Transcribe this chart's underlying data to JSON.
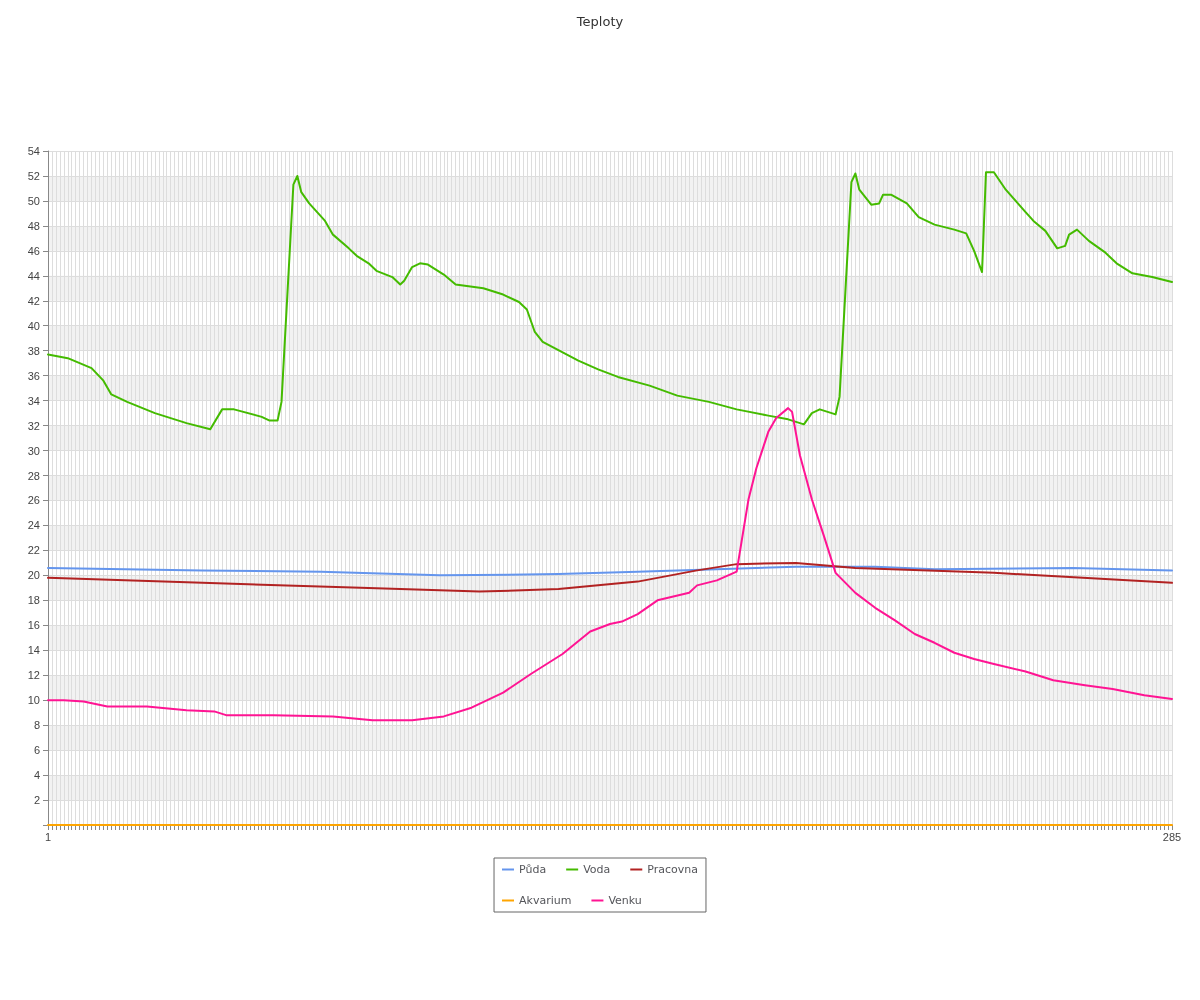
{
  "chart_data": {
    "type": "line",
    "title": "Teploty",
    "xlim": [
      1,
      285
    ],
    "xticks": [
      1,
      {
        "value": 2,
        "label": null
      },
      {
        "value": 3,
        "label": null
      },
      {
        "value": 4,
        "label": null
      },
      {
        "value": 5,
        "label": null
      },
      {
        "value": 6,
        "label": null
      },
      {
        "value": 7,
        "label": null
      },
      {
        "value": 8,
        "label": null
      },
      {
        "value": 9,
        "label": null
      },
      {
        "value": 10,
        "label": null
      },
      {
        "value": 11,
        "label": null
      },
      {
        "value": 12,
        "label": null
      },
      {
        "value": 13,
        "label": null
      },
      {
        "value": 14,
        "label": null
      },
      {
        "value": 15,
        "label": null
      },
      {
        "value": 16,
        "label": null
      },
      {
        "value": 17,
        "label": null
      },
      {
        "value": 18,
        "label": null
      },
      {
        "value": 19,
        "label": null
      },
      {
        "value": 20,
        "label": null
      },
      {
        "value": 21,
        "label": null
      },
      {
        "value": 22,
        "label": null
      },
      {
        "value": 23,
        "label": null
      },
      {
        "value": 24,
        "label": null
      },
      {
        "value": 25,
        "label": null
      },
      {
        "value": 26,
        "label": null
      },
      {
        "value": 27,
        "label": null
      },
      {
        "value": 28,
        "label": null
      },
      {
        "value": 29,
        "label": null
      },
      {
        "value": 30,
        "label": null
      },
      {
        "value": 31,
        "label": null
      },
      {
        "value": 32,
        "label": null
      },
      {
        "value": 33,
        "label": null
      },
      {
        "value": 34,
        "label": null
      },
      {
        "value": 35,
        "label": null
      },
      {
        "value": 36,
        "label": null
      },
      {
        "value": 37,
        "label": null
      },
      {
        "value": 38,
        "label": null
      },
      {
        "value": 39,
        "label": null
      },
      {
        "value": 40,
        "label": null
      },
      {
        "value": 41,
        "label": null
      },
      {
        "value": 42,
        "label": null
      },
      {
        "value": 43,
        "label": null
      },
      {
        "value": 44,
        "label": null
      },
      {
        "value": 45,
        "label": null
      },
      {
        "value": 46,
        "label": null
      },
      {
        "value": 47,
        "label": null
      },
      {
        "value": 48,
        "label": null
      },
      {
        "value": 49,
        "label": null
      },
      {
        "value": 50,
        "label": null
      },
      {
        "value": 51,
        "label": null
      },
      {
        "value": 52,
        "label": null
      },
      {
        "value": 53,
        "label": null
      },
      {
        "value": 54,
        "label": null
      },
      {
        "value": 55,
        "label": null
      },
      {
        "value": 56,
        "label": null
      },
      {
        "value": 57,
        "label": null
      },
      {
        "value": 58,
        "label": null
      },
      {
        "value": 59,
        "label": null
      },
      {
        "value": 60,
        "label": null
      },
      {
        "value": 61,
        "label": null
      },
      {
        "value": 62,
        "label": null
      },
      {
        "value": 63,
        "label": null
      },
      {
        "value": 64,
        "label": null
      },
      {
        "value": 65,
        "label": null
      },
      {
        "value": 66,
        "label": null
      },
      {
        "value": 67,
        "label": null
      },
      {
        "value": 68,
        "label": null
      },
      {
        "value": 69,
        "label": null
      },
      {
        "value": 70,
        "label": null
      },
      {
        "value": 71,
        "label": null
      },
      {
        "value": 72,
        "label": null
      },
      {
        "value": 73,
        "label": null
      },
      {
        "value": 74,
        "label": null
      },
      {
        "value": 75,
        "label": null
      },
      {
        "value": 76,
        "label": null
      },
      {
        "value": 77,
        "label": null
      },
      {
        "value": 78,
        "label": null
      },
      {
        "value": 79,
        "label": null
      },
      {
        "value": 80,
        "label": null
      },
      {
        "value": 81,
        "label": null
      },
      {
        "value": 82,
        "label": null
      },
      {
        "value": 83,
        "label": null
      },
      {
        "value": 84,
        "label": null
      },
      {
        "value": 85,
        "label": null
      },
      {
        "value": 86,
        "label": null
      },
      {
        "value": 87,
        "label": null
      },
      {
        "value": 88,
        "label": null
      },
      {
        "value": 89,
        "label": null
      },
      {
        "value": 90,
        "label": null
      },
      {
        "value": 91,
        "label": null
      },
      {
        "value": 92,
        "label": null
      },
      {
        "value": 93,
        "label": null
      },
      {
        "value": 94,
        "label": null
      },
      {
        "value": 95,
        "label": null
      },
      {
        "value": 96,
        "label": null
      },
      {
        "value": 97,
        "label": null
      },
      {
        "value": 98,
        "label": null
      },
      {
        "value": 99,
        "label": null
      },
      {
        "value": 100,
        "label": null
      },
      {
        "value": 101,
        "label": null
      },
      {
        "value": 102,
        "label": null
      },
      {
        "value": 103,
        "label": null
      },
      {
        "value": 104,
        "label": null
      },
      {
        "value": 105,
        "label": null
      },
      {
        "value": 106,
        "label": null
      },
      {
        "value": 107,
        "label": null
      },
      {
        "value": 108,
        "label": null
      },
      {
        "value": 109,
        "label": null
      },
      {
        "value": 110,
        "label": null
      },
      {
        "value": 111,
        "label": null
      },
      {
        "value": 112,
        "label": null
      },
      {
        "value": 113,
        "label": null
      },
      {
        "value": 114,
        "label": null
      },
      {
        "value": 115,
        "label": null
      },
      {
        "value": 116,
        "label": null
      },
      {
        "value": 117,
        "label": null
      },
      {
        "value": 118,
        "label": null
      },
      {
        "value": 119,
        "label": null
      },
      {
        "value": 120,
        "label": null
      },
      {
        "value": 121,
        "label": null
      },
      {
        "value": 122,
        "label": null
      },
      {
        "value": 123,
        "label": null
      },
      {
        "value": 124,
        "label": null
      },
      {
        "value": 125,
        "label": null
      },
      {
        "value": 126,
        "label": null
      },
      {
        "value": 127,
        "label": null
      },
      {
        "value": 128,
        "label": null
      },
      {
        "value": 129,
        "label": null
      },
      {
        "value": 130,
        "label": null
      },
      {
        "value": 131,
        "label": null
      },
      {
        "value": 132,
        "label": null
      },
      {
        "value": 133,
        "label": null
      },
      {
        "value": 134,
        "label": null
      },
      {
        "value": 135,
        "label": null
      },
      {
        "value": 136,
        "label": null
      },
      {
        "value": 137,
        "label": null
      },
      {
        "value": 138,
        "label": null
      },
      {
        "value": 139,
        "label": null
      },
      {
        "value": 140,
        "label": null
      },
      {
        "value": 141,
        "label": null
      },
      {
        "value": 142,
        "label": null
      },
      {
        "value": 143,
        "label": null
      },
      {
        "value": 144,
        "label": null
      },
      {
        "value": 145,
        "label": null
      },
      {
        "value": 146,
        "label": null
      },
      {
        "value": 147,
        "label": null
      },
      {
        "value": 148,
        "label": null
      },
      {
        "value": 149,
        "label": null
      },
      {
        "value": 150,
        "label": null
      },
      {
        "value": 151,
        "label": null
      },
      {
        "value": 152,
        "label": null
      },
      {
        "value": 153,
        "label": null
      },
      {
        "value": 154,
        "label": null
      },
      {
        "value": 155,
        "label": null
      },
      {
        "value": 156,
        "label": null
      },
      {
        "value": 157,
        "label": null
      },
      {
        "value": 158,
        "label": null
      },
      {
        "value": 159,
        "label": null
      },
      {
        "value": 160,
        "label": null
      },
      {
        "value": 161,
        "label": null
      },
      {
        "value": 162,
        "label": null
      },
      {
        "value": 163,
        "label": null
      },
      {
        "value": 164,
        "label": null
      },
      {
        "value": 165,
        "label": null
      },
      {
        "value": 166,
        "label": null
      },
      {
        "value": 167,
        "label": null
      },
      {
        "value": 168,
        "label": null
      },
      {
        "value": 169,
        "label": null
      },
      {
        "value": 170,
        "label": null
      },
      {
        "value": 171,
        "label": null
      },
      {
        "value": 172,
        "label": null
      },
      {
        "value": 173,
        "label": null
      },
      {
        "value": 174,
        "label": null
      },
      {
        "value": 175,
        "label": null
      },
      {
        "value": 176,
        "label": null
      },
      {
        "value": 177,
        "label": null
      },
      {
        "value": 178,
        "label": null
      },
      {
        "value": 179,
        "label": null
      },
      {
        "value": 180,
        "label": null
      },
      {
        "value": 181,
        "label": null
      },
      {
        "value": 182,
        "label": null
      },
      {
        "value": 183,
        "label": null
      },
      {
        "value": 184,
        "label": null
      },
      {
        "value": 185,
        "label": null
      },
      {
        "value": 186,
        "label": null
      },
      {
        "value": 187,
        "label": null
      },
      {
        "value": 188,
        "label": null
      },
      {
        "value": 189,
        "label": null
      },
      {
        "value": 190,
        "label": null
      },
      {
        "value": 191,
        "label": null
      },
      {
        "value": 192,
        "label": null
      },
      {
        "value": 193,
        "label": null
      },
      {
        "value": 194,
        "label": null
      },
      {
        "value": 195,
        "label": null
      },
      {
        "value": 196,
        "label": null
      },
      {
        "value": 197,
        "label": null
      },
      {
        "value": 198,
        "label": null
      },
      {
        "value": 199,
        "label": null
      },
      {
        "value": 200,
        "label": null
      },
      {
        "value": 201,
        "label": null
      },
      {
        "value": 202,
        "label": null
      },
      {
        "value": 203,
        "label": null
      },
      {
        "value": 204,
        "label": null
      },
      {
        "value": 205,
        "label": null
      },
      {
        "value": 206,
        "label": null
      },
      {
        "value": 207,
        "label": null
      },
      {
        "value": 208,
        "label": null
      },
      {
        "value": 209,
        "label": null
      },
      {
        "value": 210,
        "label": null
      },
      {
        "value": 211,
        "label": null
      },
      {
        "value": 212,
        "label": null
      },
      {
        "value": 213,
        "label": null
      },
      {
        "value": 214,
        "label": null
      },
      {
        "value": 215,
        "label": null
      },
      {
        "value": 216,
        "label": null
      },
      {
        "value": 217,
        "label": null
      },
      {
        "value": 218,
        "label": null
      },
      {
        "value": 219,
        "label": null
      },
      {
        "value": 220,
        "label": null
      },
      {
        "value": 221,
        "label": null
      },
      {
        "value": 222,
        "label": null
      },
      {
        "value": 223,
        "label": null
      },
      {
        "value": 224,
        "label": null
      },
      {
        "value": 225,
        "label": null
      },
      {
        "value": 226,
        "label": null
      },
      {
        "value": 227,
        "label": null
      },
      {
        "value": 228,
        "label": null
      },
      {
        "value": 229,
        "label": null
      },
      {
        "value": 230,
        "label": null
      },
      {
        "value": 231,
        "label": null
      },
      {
        "value": 232,
        "label": null
      },
      {
        "value": 233,
        "label": null
      },
      {
        "value": 234,
        "label": null
      },
      {
        "value": 235,
        "label": null
      },
      {
        "value": 236,
        "label": null
      },
      {
        "value": 237,
        "label": null
      },
      {
        "value": 238,
        "label": null
      },
      {
        "value": 239,
        "label": null
      },
      {
        "value": 240,
        "label": null
      },
      {
        "value": 241,
        "label": null
      },
      {
        "value": 242,
        "label": null
      },
      {
        "value": 243,
        "label": null
      },
      {
        "value": 244,
        "label": null
      },
      {
        "value": 245,
        "label": null
      },
      {
        "value": 246,
        "label": null
      },
      {
        "value": 247,
        "label": null
      },
      {
        "value": 248,
        "label": null
      },
      {
        "value": 249,
        "label": null
      },
      {
        "value": 250,
        "label": null
      },
      {
        "value": 251,
        "label": null
      },
      {
        "value": 252,
        "label": null
      },
      {
        "value": 253,
        "label": null
      },
      {
        "value": 254,
        "label": null
      },
      {
        "value": 255,
        "label": null
      },
      {
        "value": 256,
        "label": null
      },
      {
        "value": 257,
        "label": null
      },
      {
        "value": 258,
        "label": null
      },
      {
        "value": 259,
        "label": null
      },
      {
        "value": 260,
        "label": null
      },
      {
        "value": 261,
        "label": null
      },
      {
        "value": 262,
        "label": null
      },
      {
        "value": 263,
        "label": null
      },
      {
        "value": 264,
        "label": null
      },
      {
        "value": 265,
        "label": null
      },
      {
        "value": 266,
        "label": null
      },
      {
        "value": 267,
        "label": null
      },
      {
        "value": 268,
        "label": null
      },
      {
        "value": 269,
        "label": null
      },
      {
        "value": 270,
        "label": null
      },
      {
        "value": 271,
        "label": null
      },
      {
        "value": 272,
        "label": null
      },
      {
        "value": 273,
        "label": null
      },
      {
        "value": 274,
        "label": null
      },
      {
        "value": 275,
        "label": null
      },
      {
        "value": 276,
        "label": null
      },
      {
        "value": 277,
        "label": null
      },
      {
        "value": 278,
        "label": null
      },
      {
        "value": 279,
        "label": null
      },
      {
        "value": 280,
        "label": null
      },
      {
        "value": 281,
        "label": null
      },
      {
        "value": 282,
        "label": null
      },
      {
        "value": 283,
        "label": null
      },
      {
        "value": 284,
        "label": null
      },
      285
    ],
    "ylim": [
      0,
      54
    ],
    "yticks": [
      {
        "value": 0,
        "label": null
      },
      2,
      4,
      6,
      8,
      10,
      12,
      14,
      16,
      18,
      20,
      22,
      24,
      26,
      28,
      30,
      32,
      34,
      36,
      38,
      40,
      42,
      44,
      46,
      48,
      50,
      52,
      54
    ],
    "grid": true,
    "legend": "bottom",
    "marker": "none",
    "line_style": "solid",
    "series": [
      {
        "name": "Půda",
        "color": "#6495ed",
        "x": [
          1,
          40,
          70,
          100,
          130,
          150,
          170,
          190,
          210,
          225,
          260,
          285
        ],
        "values": [
          20.6,
          20.4,
          20.3,
          20.0,
          20.1,
          20.3,
          20.5,
          20.7,
          20.7,
          20.5,
          20.6,
          20.4
        ]
      },
      {
        "name": "Voda",
        "color": "#44bb00",
        "x": [
          1,
          6,
          12,
          15,
          17,
          21,
          28,
          36,
          42,
          45,
          48,
          55,
          57,
          59,
          60,
          63,
          64,
          65,
          67,
          69,
          71,
          73,
          77,
          79,
          82,
          84,
          88,
          90,
          91,
          93,
          95,
          97,
          101,
          104,
          111,
          116,
          120,
          122,
          124,
          126,
          135,
          140,
          145,
          153,
          160,
          168,
          175,
          183,
          188,
          192,
          194,
          196,
          200,
          201,
          204,
          205,
          206,
          209,
          211,
          212,
          214,
          218,
          221,
          225,
          230,
          233,
          235,
          237,
          238,
          240,
          243,
          248,
          250,
          253,
          256,
          258,
          259,
          261,
          264,
          268,
          271,
          275,
          280,
          285
        ],
        "values": [
          37.7,
          37.4,
          36.6,
          35.6,
          34.5,
          33.9,
          33.0,
          32.2,
          31.7,
          33.3,
          33.3,
          32.7,
          32.4,
          32.4,
          33.9,
          51.3,
          52.0,
          50.7,
          49.8,
          49.1,
          48.4,
          47.3,
          46.2,
          45.6,
          45.0,
          44.4,
          43.9,
          43.3,
          43.6,
          44.7,
          45.0,
          44.9,
          44.1,
          43.3,
          43.0,
          42.5,
          41.9,
          41.3,
          39.5,
          38.7,
          37.2,
          36.5,
          35.9,
          35.2,
          34.4,
          33.9,
          33.3,
          32.8,
          32.5,
          32.1,
          33.0,
          33.3,
          32.9,
          34.3,
          51.5,
          52.2,
          50.9,
          49.7,
          49.8,
          50.5,
          50.5,
          49.8,
          48.7,
          48.1,
          47.7,
          47.4,
          46.0,
          44.3,
          52.3,
          52.3,
          50.9,
          49.1,
          48.4,
          47.6,
          46.2,
          46.4,
          47.3,
          47.7,
          46.8,
          45.9,
          45.0,
          44.2,
          43.9,
          43.5
        ]
      },
      {
        "name": "Pracovna",
        "color": "#b22222",
        "x": [
          1,
          40,
          80,
          110,
          130,
          150,
          165,
          175,
          190,
          205,
          240,
          285
        ],
        "values": [
          19.8,
          19.4,
          19.0,
          18.7,
          18.9,
          19.5,
          20.4,
          20.9,
          21.0,
          20.6,
          20.2,
          19.4
        ]
      },
      {
        "name": "Akvarium",
        "color": "#ffa500",
        "x": [
          1,
          285
        ],
        "values": [
          0,
          0
        ]
      },
      {
        "name": "Venku",
        "color": "#ff1493",
        "x": [
          1,
          5,
          10,
          16,
          26,
          36,
          43,
          46,
          58,
          73,
          83,
          93,
          101,
          108,
          116,
          123,
          131,
          138,
          143,
          146,
          150,
          155,
          163,
          165,
          170,
          175,
          178,
          180,
          183,
          185,
          188,
          189,
          191,
          194,
          197,
          200,
          205,
          210,
          215,
          220,
          225,
          230,
          235,
          240,
          248,
          255,
          263,
          270,
          278,
          285
        ],
        "values": [
          10.0,
          10.0,
          9.9,
          9.5,
          9.5,
          9.2,
          9.1,
          8.8,
          8.8,
          8.7,
          8.4,
          8.4,
          8.7,
          9.4,
          10.6,
          12.1,
          13.7,
          15.5,
          16.1,
          16.3,
          16.9,
          18.0,
          18.6,
          19.2,
          19.6,
          20.3,
          26.1,
          28.6,
          31.5,
          32.6,
          33.4,
          33.1,
          29.6,
          26.1,
          23.2,
          20.2,
          18.6,
          17.4,
          16.4,
          15.3,
          14.6,
          13.8,
          13.3,
          12.9,
          12.3,
          11.6,
          11.2,
          10.9,
          10.4,
          10.1
        ]
      }
    ]
  }
}
